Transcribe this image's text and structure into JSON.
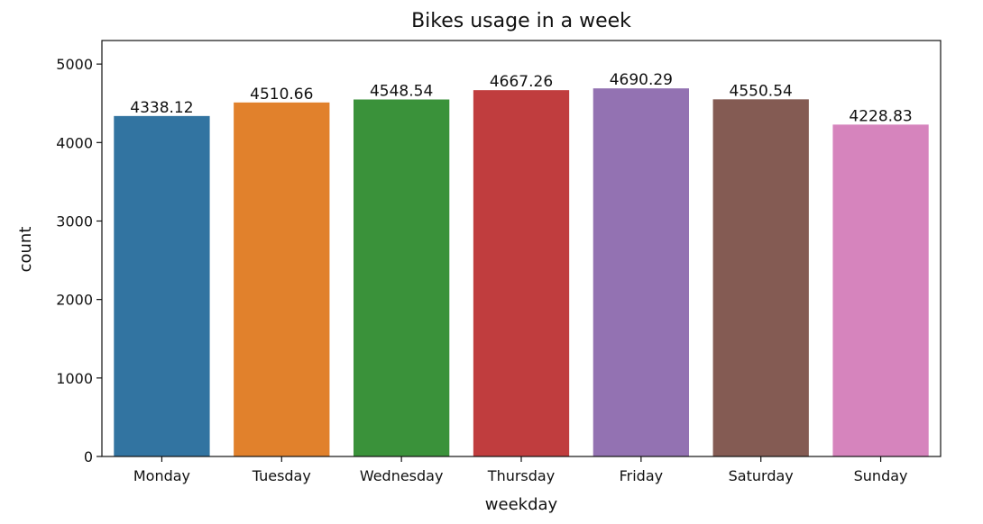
{
  "chart_data": {
    "type": "bar",
    "title": "Bikes usage in a week",
    "xlabel": "weekday",
    "ylabel": "count",
    "categories": [
      "Monday",
      "Tuesday",
      "Wednesday",
      "Thursday",
      "Friday",
      "Saturday",
      "Sunday"
    ],
    "values": [
      4338.12,
      4510.66,
      4548.54,
      4667.26,
      4690.29,
      4550.54,
      4228.83
    ],
    "data_labels": [
      "4338.12",
      "4510.66",
      "4548.54",
      "4667.26",
      "4690.29",
      "4550.54",
      "4228.83"
    ],
    "colors": [
      "#3274a1",
      "#e1812c",
      "#3a923a",
      "#c03d3e",
      "#9372b2",
      "#845b53",
      "#d684bd"
    ],
    "ylim": [
      0,
      5300
    ],
    "yticks": [
      0,
      1000,
      2000,
      3000,
      4000,
      5000
    ],
    "ytick_labels": [
      "0",
      "1000",
      "2000",
      "3000",
      "4000",
      "5000"
    ],
    "grid": false,
    "legend": "none"
  }
}
